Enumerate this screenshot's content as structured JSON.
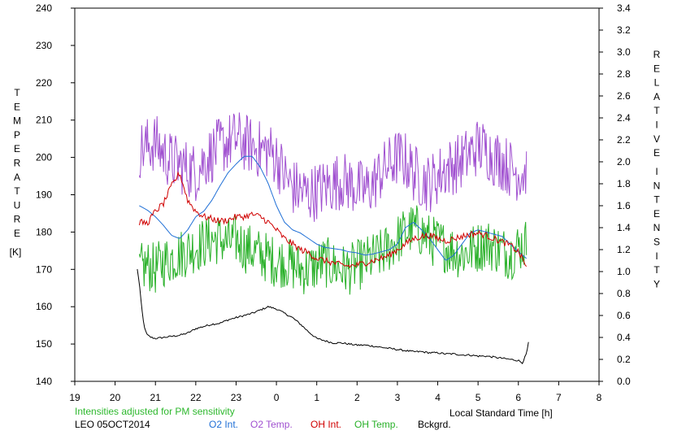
{
  "chart_data": {
    "type": "line",
    "xlabel": "Local Standard Time [h]",
    "left_axis": {
      "label_letters": [
        "T",
        "E",
        "M",
        "P",
        "E",
        "R",
        "A",
        "T",
        "U",
        "R",
        "E"
      ],
      "unit": "[K]",
      "range": [
        140,
        240
      ],
      "ticks": [
        "140",
        "150",
        "160",
        "170",
        "180",
        "190",
        "200",
        "210",
        "220",
        "230",
        "240"
      ]
    },
    "right_axis": {
      "label_word1": [
        "R",
        "E",
        "L",
        "A",
        "T",
        "I",
        "V",
        "E"
      ],
      "label_word2": [
        "I",
        "N",
        "T",
        "E",
        "N",
        "S",
        "I",
        "T",
        "Y"
      ],
      "range": [
        0.0,
        3.4
      ],
      "ticks": [
        "0.0",
        "0.2",
        "0.4",
        "0.6",
        "0.8",
        "1.0",
        "1.2",
        "1.4",
        "1.6",
        "1.8",
        "2.0",
        "2.2",
        "2.4",
        "2.6",
        "2.8",
        "3.0",
        "3.2",
        "3.4"
      ]
    },
    "x_axis": {
      "range": [
        19,
        32
      ],
      "tick_labels": [
        "19",
        "20",
        "21",
        "22",
        "23",
        "0",
        "1",
        "2",
        "3",
        "4",
        "5",
        "6",
        "7",
        "8"
      ]
    },
    "note": "Intensities adjusted for PM sensitivity",
    "station": "LEO 05OCT2014",
    "grid": false,
    "series": [
      {
        "name": "O2 Int.",
        "axis": "right",
        "color": "#1f6fd6",
        "style": "line",
        "x": [
          20.6,
          20.8,
          21.0,
          21.2,
          21.4,
          21.6,
          21.8,
          22.0,
          22.2,
          22.4,
          22.6,
          22.8,
          23.0,
          23.2,
          23.4,
          23.6,
          23.8,
          24.0,
          24.2,
          24.4,
          24.6,
          24.8,
          25.0,
          25.2,
          25.4,
          25.6,
          25.8,
          26.0,
          26.2,
          26.4,
          26.6,
          26.8,
          27.0,
          27.2,
          27.4,
          27.6,
          27.8,
          28.0,
          28.2,
          28.4,
          28.6,
          28.8,
          29.0,
          29.2,
          29.4,
          29.6,
          29.8,
          30.0,
          30.2
        ],
        "y": [
          1.6,
          1.56,
          1.5,
          1.42,
          1.33,
          1.3,
          1.38,
          1.5,
          1.55,
          1.65,
          1.78,
          1.9,
          1.98,
          2.05,
          2.05,
          1.95,
          1.8,
          1.6,
          1.45,
          1.38,
          1.35,
          1.3,
          1.25,
          1.22,
          1.21,
          1.2,
          1.18,
          1.17,
          1.15,
          1.16,
          1.18,
          1.2,
          1.25,
          1.4,
          1.45,
          1.38,
          1.3,
          1.2,
          1.1,
          1.15,
          1.25,
          1.35,
          1.38,
          1.36,
          1.34,
          1.32,
          1.25,
          1.18,
          1.12
        ]
      },
      {
        "name": "O2 Temp.",
        "axis": "left",
        "color": "#a050d0",
        "style": "noisy",
        "x": [
          20.6,
          20.8,
          21.0,
          21.2,
          21.4,
          21.6,
          21.8,
          22.0,
          22.2,
          22.4,
          22.6,
          22.8,
          23.0,
          23.2,
          23.4,
          23.6,
          23.8,
          24.0,
          24.2,
          24.4,
          24.6,
          24.8,
          25.0,
          25.2,
          25.4,
          25.6,
          25.8,
          26.0,
          26.2,
          26.4,
          26.6,
          26.8,
          27.0,
          27.2,
          27.4,
          27.6,
          27.8,
          28.0,
          28.2,
          28.4,
          28.6,
          28.8,
          29.0,
          29.2,
          29.4,
          29.6,
          29.8,
          30.0,
          30.2
        ],
        "y": [
          202,
          203,
          204,
          201,
          199,
          198,
          197,
          196,
          199,
          201,
          203,
          204,
          205,
          204,
          203,
          202,
          202,
          200,
          195,
          192,
          191,
          190,
          191,
          192,
          193,
          194,
          193,
          192,
          191,
          193,
          196,
          198,
          200,
          199,
          196,
          194,
          193,
          195,
          197,
          198,
          199,
          201,
          203,
          202,
          200,
          199,
          197,
          196,
          196
        ],
        "noise": 8
      },
      {
        "name": "OH Int.",
        "axis": "right",
        "color": "#d00000",
        "style": "line",
        "x": [
          20.6,
          20.8,
          21.0,
          21.2,
          21.4,
          21.6,
          21.8,
          22.0,
          22.2,
          22.4,
          22.6,
          22.8,
          23.0,
          23.2,
          23.4,
          23.6,
          23.8,
          24.0,
          24.2,
          24.4,
          24.6,
          24.8,
          25.0,
          25.2,
          25.4,
          25.6,
          25.8,
          26.0,
          26.2,
          26.4,
          26.6,
          26.8,
          27.0,
          27.2,
          27.4,
          27.6,
          27.8,
          28.0,
          28.2,
          28.4,
          28.6,
          28.8,
          29.0,
          29.2,
          29.4,
          29.6,
          29.8,
          30.0,
          30.2
        ],
        "y": [
          1.45,
          1.44,
          1.55,
          1.62,
          1.78,
          1.9,
          1.65,
          1.55,
          1.5,
          1.48,
          1.46,
          1.47,
          1.5,
          1.5,
          1.52,
          1.5,
          1.45,
          1.38,
          1.3,
          1.25,
          1.2,
          1.17,
          1.12,
          1.1,
          1.08,
          1.06,
          1.05,
          1.06,
          1.08,
          1.1,
          1.12,
          1.15,
          1.2,
          1.25,
          1.3,
          1.32,
          1.33,
          1.3,
          1.28,
          1.3,
          1.32,
          1.34,
          1.35,
          1.33,
          1.3,
          1.27,
          1.24,
          1.18,
          1.05
        ],
        "noise": 0.03
      },
      {
        "name": "OH Temp.",
        "axis": "left",
        "color": "#28b028",
        "style": "noisy",
        "x": [
          20.6,
          20.8,
          21.0,
          21.2,
          21.4,
          21.6,
          21.8,
          22.0,
          22.2,
          22.4,
          22.6,
          22.8,
          23.0,
          23.2,
          23.4,
          23.6,
          23.8,
          24.0,
          24.2,
          24.4,
          24.6,
          24.8,
          25.0,
          25.2,
          25.4,
          25.6,
          25.8,
          26.0,
          26.2,
          26.4,
          26.6,
          26.8,
          27.0,
          27.2,
          27.4,
          27.6,
          27.8,
          28.0,
          28.2,
          28.4,
          28.6,
          28.8,
          29.0,
          29.2,
          29.4,
          29.6,
          29.8,
          30.0,
          30.2
        ],
        "y": [
          170,
          171,
          170,
          172,
          173,
          174,
          175,
          176,
          177,
          178,
          178,
          177,
          178,
          176,
          175,
          174,
          173,
          172,
          172,
          171,
          170,
          170,
          171,
          172,
          171,
          170,
          170,
          171,
          172,
          173,
          174,
          176,
          178,
          180,
          181,
          180,
          178,
          177,
          176,
          175,
          174,
          175,
          176,
          177,
          176,
          175,
          174,
          176,
          177
        ],
        "noise": 7
      },
      {
        "name": "Bckgrd.",
        "axis": "right",
        "color": "#000000",
        "style": "line",
        "x": [
          20.55,
          20.6,
          20.65,
          20.7,
          20.75,
          20.8,
          20.9,
          21.0,
          21.2,
          21.4,
          21.6,
          21.8,
          22.0,
          22.2,
          22.4,
          22.6,
          22.8,
          23.0,
          23.2,
          23.4,
          23.6,
          23.8,
          24.0,
          24.2,
          24.4,
          24.6,
          24.8,
          25.0,
          25.2,
          25.4,
          25.6,
          25.8,
          26.0,
          26.2,
          26.4,
          26.6,
          26.8,
          27.0,
          27.2,
          27.4,
          27.6,
          27.8,
          28.0,
          28.2,
          28.4,
          28.6,
          28.8,
          29.0,
          29.2,
          29.4,
          29.6,
          29.8,
          30.0,
          30.1,
          30.2,
          30.25
        ],
        "y": [
          1.02,
          0.9,
          0.7,
          0.55,
          0.46,
          0.42,
          0.4,
          0.39,
          0.4,
          0.41,
          0.42,
          0.44,
          0.48,
          0.5,
          0.52,
          0.53,
          0.56,
          0.58,
          0.6,
          0.62,
          0.65,
          0.68,
          0.66,
          0.62,
          0.58,
          0.52,
          0.45,
          0.39,
          0.37,
          0.35,
          0.35,
          0.34,
          0.33,
          0.33,
          0.32,
          0.31,
          0.3,
          0.29,
          0.28,
          0.27,
          0.27,
          0.26,
          0.26,
          0.25,
          0.25,
          0.24,
          0.24,
          0.23,
          0.23,
          0.22,
          0.21,
          0.2,
          0.19,
          0.17,
          0.25,
          0.35
        ],
        "noise": 0.008
      }
    ]
  }
}
